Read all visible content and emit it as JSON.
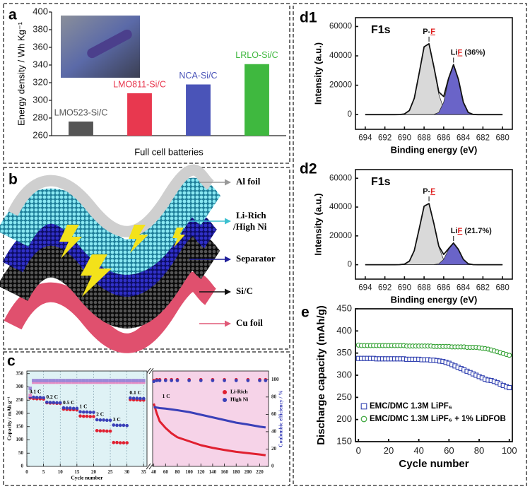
{
  "chart_data": [
    {
      "type": "bar",
      "label": "a",
      "ylabel": "Energy density / Wh Kg⁻¹",
      "xlabel": "Full cell batteries",
      "categories": [
        "LMO523-Si/C",
        "LMO811-Si/C",
        "NCA-Si/C",
        "LRLO-Si/C"
      ],
      "values": [
        276,
        308,
        318,
        341
      ],
      "colors": [
        "#555555",
        "#e8384f",
        "#4a54b8",
        "#3fb83f"
      ],
      "ylim": [
        260,
        400
      ],
      "yticks": [
        260,
        280,
        300,
        320,
        340,
        360,
        380,
        400
      ],
      "frame": false
    },
    {
      "type": "scatter",
      "label": "c",
      "ylabel": "Capacity / mAh g⁻¹",
      "xlabel": "Cycle number",
      "x": [
        1,
        2,
        3,
        4,
        5,
        6,
        7,
        8,
        9,
        10,
        11,
        12,
        13,
        14,
        15,
        16,
        17,
        18,
        19,
        20,
        21,
        22,
        23,
        24,
        25,
        26,
        27,
        28,
        29,
        30,
        31,
        32,
        33,
        34,
        35
      ],
      "xlim": [
        0,
        36
      ],
      "xticks": [
        0,
        5,
        10,
        15,
        20,
        25,
        30,
        35
      ],
      "ylim": [
        0,
        360
      ],
      "yticks": [
        0,
        50,
        100,
        150,
        200,
        250,
        300,
        350
      ],
      "y2lim": [
        0,
        110
      ],
      "background": "#dff2f5",
      "grid": "x",
      "frame": true,
      "annotations": [
        "0.1 C",
        "0.2 C",
        "0.5 C",
        "1 C",
        "2 C",
        "3 C",
        "0.1 C"
      ],
      "series": [
        {
          "color": "#e02030",
          "marker": "circle",
          "filled": true,
          "values": [
            258,
            256,
            255,
            255,
            254,
            240,
            239,
            239,
            238,
            238,
            216,
            215,
            214,
            214,
            213,
            190,
            189,
            189,
            188,
            188,
            135,
            134,
            134,
            133,
            133,
            90,
            90,
            89,
            89,
            89,
            252,
            251,
            251,
            250,
            250
          ]
        },
        {
          "color": "#3a40b8",
          "marker": "circle",
          "filled": true,
          "values": [
            262,
            261,
            260,
            260,
            259,
            242,
            241,
            241,
            240,
            240,
            221,
            220,
            220,
            219,
            219,
            206,
            205,
            205,
            204,
            204,
            176,
            175,
            175,
            174,
            174,
            156,
            155,
            155,
            155,
            154,
            258,
            257,
            257,
            256,
            256
          ]
        },
        {
          "color": "#e58cc4",
          "marker": "square",
          "filled": true,
          "axis": "y2",
          "values": [
            82,
            97,
            97,
            97,
            97,
            97,
            97,
            97,
            97,
            97,
            97,
            97,
            97,
            97,
            97,
            97,
            97,
            97,
            97,
            97,
            97,
            97,
            97,
            97,
            97,
            97,
            97,
            97,
            97,
            97,
            97,
            97,
            97,
            97,
            97
          ]
        },
        {
          "color": "#9a88d8",
          "marker": "square",
          "filled": true,
          "axis": "y2",
          "values": [
            90,
            99,
            99,
            99,
            99,
            99,
            99,
            99,
            99,
            99,
            99,
            99,
            99,
            99,
            99,
            99,
            99,
            99,
            99,
            99,
            99,
            99,
            99,
            99,
            99,
            99,
            99,
            99,
            99,
            99,
            99,
            99,
            99,
            99,
            99
          ]
        }
      ]
    },
    {
      "type": "line",
      "y2label": "Coulombic efficiency / %",
      "annotation": "1 C",
      "x": [
        40,
        45,
        50,
        60,
        70,
        80,
        100,
        120,
        140,
        160,
        180,
        200,
        220,
        230
      ],
      "xlim": [
        38,
        235
      ],
      "xticks": [
        40,
        60,
        80,
        100,
        120,
        140,
        160,
        180,
        200,
        220
      ],
      "ylim": [
        0,
        360
      ],
      "y2lim": [
        0,
        110
      ],
      "y2ticks": [
        0,
        20,
        40,
        60,
        80,
        100
      ],
      "background": "#f6d3e8",
      "frame": true,
      "legend": "upper right",
      "series": [
        {
          "name": "Li-Rich",
          "color": "#e02030",
          "width": 3,
          "values": [
            237,
            200,
            170,
            145,
            125,
            110,
            95,
            80,
            70,
            62,
            55,
            50,
            45,
            42
          ]
        },
        {
          "name": "High Ni",
          "color": "#3a40b8",
          "width": 3,
          "values": [
            224,
            222,
            220,
            218,
            215,
            212,
            205,
            195,
            185,
            175,
            165,
            158,
            150,
            147
          ]
        },
        {
          "color": "#e02030",
          "marker": "circle",
          "filled": true,
          "axis": "y2",
          "values": [
            99,
            100,
            100,
            100,
            100,
            100,
            100,
            100,
            100,
            100,
            100,
            100,
            100,
            100
          ]
        },
        {
          "color": "#3a40b8",
          "marker": "circle",
          "filled": true,
          "axis": "y2",
          "values": [
            98,
            99,
            99,
            99,
            99,
            99,
            99,
            99,
            99,
            99,
            99,
            99,
            99,
            99
          ]
        }
      ]
    },
    {
      "type": "line",
      "label": "d1",
      "title": "F1s",
      "xlabel": "Binding energy (eV)",
      "ylabel": "Intensity (a.u.)",
      "x": [
        694,
        693.5,
        693,
        692.5,
        692,
        691.5,
        691,
        690.5,
        690,
        689.5,
        689,
        688.5,
        688,
        687.5,
        687,
        686.5,
        686,
        685.5,
        685,
        684.5,
        684,
        683.5,
        683,
        682.5,
        682,
        681.5,
        681,
        680.5,
        680
      ],
      "xlim": [
        695,
        679
      ],
      "xticks": [
        694,
        692,
        690,
        688,
        686,
        684,
        682,
        680
      ],
      "ylim": [
        -10000,
        66000
      ],
      "yticks": [
        0,
        20000,
        40000,
        60000
      ],
      "frame": true,
      "highlight": "#e02020",
      "peak_labels": [
        [
          "P-",
          "F"
        ],
        [
          "Li",
          "F",
          " (36%)"
        ]
      ],
      "series": [
        {
          "color": "#d9d9d9",
          "fill": true,
          "values": [
            0,
            0,
            0,
            0,
            0,
            0,
            0,
            45,
            450,
            2800,
            11150,
            28300,
            46150,
            48250,
            32350,
            13900,
            3850,
            675,
            75,
            0,
            0,
            0,
            0,
            0,
            0,
            0,
            0,
            0,
            0
          ]
        },
        {
          "color": "#6a64c8",
          "fill": true,
          "values": [
            0,
            0,
            0,
            0,
            0,
            0,
            0,
            0,
            0,
            0,
            0,
            0,
            0,
            0,
            136,
            1500,
            8470,
            24040,
            34000,
            24040,
            8470,
            1500,
            136,
            0,
            0,
            0,
            0,
            0,
            0
          ]
        },
        {
          "color": "#111111",
          "width": 1.8,
          "values": [
            0,
            0,
            0,
            0,
            0,
            0,
            0,
            45,
            450,
            2800,
            11150,
            28300,
            46150,
            48250,
            32486,
            15400,
            12320,
            24715,
            34075,
            24040,
            8470,
            1500,
            136,
            0,
            0,
            0,
            0,
            0,
            0
          ]
        }
      ]
    },
    {
      "type": "line",
      "label": "d2",
      "title": "F1s",
      "xlabel": "Binding energy (eV)",
      "ylabel": "Intensity (a.u.)",
      "x": [
        694,
        693.5,
        693,
        692.5,
        692,
        691.5,
        691,
        690.5,
        690,
        689.5,
        689,
        688.5,
        688,
        687.5,
        687,
        686.5,
        686,
        685.5,
        685,
        684.5,
        684,
        683.5,
        683,
        682.5,
        682,
        681.5,
        681,
        680.5,
        680
      ],
      "xlim": [
        695,
        679
      ],
      "xticks": [
        694,
        692,
        690,
        688,
        686,
        684,
        682,
        680
      ],
      "ylim": [
        -10000,
        66000
      ],
      "yticks": [
        0,
        20000,
        40000,
        60000
      ],
      "frame": true,
      "highlight": "#e02020",
      "peak_labels": [
        [
          "P-",
          "F"
        ],
        [
          "Li",
          "F",
          " (21.7%)"
        ]
      ],
      "series": [
        {
          "color": "#d9d9d9",
          "fill": true,
          "values": [
            0,
            0,
            0,
            0,
            0,
            0,
            0,
            40,
            396,
            2464,
            9812,
            24904,
            40612,
            42460,
            28468,
            12232,
            3388,
            594,
            66,
            0,
            0,
            0,
            0,
            0,
            0,
            0,
            0,
            0,
            0
          ]
        },
        {
          "color": "#6a64c8",
          "fill": true,
          "values": [
            0,
            0,
            0,
            0,
            0,
            0,
            0,
            0,
            0,
            0,
            0,
            0,
            0,
            0,
            60,
            660,
            3735,
            10605,
            15000,
            10605,
            3735,
            660,
            60,
            0,
            0,
            0,
            0,
            0,
            0
          ]
        },
        {
          "color": "#111111",
          "width": 1.8,
          "values": [
            0,
            0,
            0,
            0,
            0,
            0,
            0,
            40,
            396,
            2464,
            9812,
            24904,
            40612,
            42460,
            28528,
            12892,
            7123,
            11199,
            15066,
            10605,
            3735,
            660,
            60,
            0,
            0,
            0,
            0,
            0,
            0
          ]
        }
      ]
    },
    {
      "type": "scatter",
      "label": "e",
      "xlabel": "Cycle number",
      "ylabel": "Discharge capacity (mAh/g)",
      "x": [
        0,
        2,
        4,
        6,
        8,
        10,
        12,
        14,
        16,
        18,
        20,
        22,
        24,
        26,
        28,
        30,
        32,
        34,
        36,
        38,
        40,
        42,
        44,
        46,
        48,
        50,
        52,
        54,
        56,
        58,
        60,
        62,
        64,
        66,
        68,
        70,
        72,
        74,
        76,
        78,
        80,
        82,
        84,
        86,
        88,
        90,
        92,
        94,
        96,
        98,
        100
      ],
      "xlim": [
        -2,
        102
      ],
      "xticks": [
        0,
        20,
        40,
        60,
        80,
        100
      ],
      "ylim": [
        150,
        450
      ],
      "yticks": [
        150,
        200,
        250,
        300,
        350,
        400,
        450
      ],
      "frame": true,
      "legend": "lower left",
      "series": [
        {
          "name": "EMC/DMC 1.3M LiPF₆",
          "color": "#3040b0",
          "marker": "square",
          "filled": false,
          "values": [
            338,
            338,
            338,
            338,
            338,
            338,
            337,
            337,
            337,
            337,
            337,
            337,
            337,
            337,
            337,
            337,
            336,
            336,
            336,
            336,
            336,
            335,
            335,
            335,
            334,
            334,
            333,
            332,
            331,
            329,
            327,
            324,
            321,
            318,
            315,
            312,
            309,
            306,
            303,
            300,
            297,
            294,
            291,
            289,
            288,
            286,
            283,
            280,
            277,
            274,
            272
          ]
        },
        {
          "name": "EMC/DMC 1.3M LiPF₆ + 1% LiDFOB",
          "color": "#2f9f2f",
          "marker": "circle",
          "filled": false,
          "values": [
            368,
            367,
            367,
            367,
            367,
            367,
            367,
            367,
            367,
            367,
            367,
            367,
            367,
            367,
            367,
            367,
            366,
            366,
            366,
            366,
            366,
            366,
            366,
            366,
            366,
            365,
            365,
            365,
            365,
            365,
            365,
            364,
            364,
            364,
            364,
            364,
            363,
            363,
            363,
            363,
            362,
            361,
            360,
            359,
            357,
            355,
            353,
            351,
            349,
            347,
            345
          ]
        }
      ]
    }
  ],
  "schematic": {
    "label": "b",
    "layers": [
      [
        "Al  foil"
      ],
      [
        "Li-Rich",
        "/High Ni"
      ],
      [
        "Separator"
      ],
      [
        "Si/C"
      ],
      [
        "Cu  foil"
      ]
    ]
  }
}
